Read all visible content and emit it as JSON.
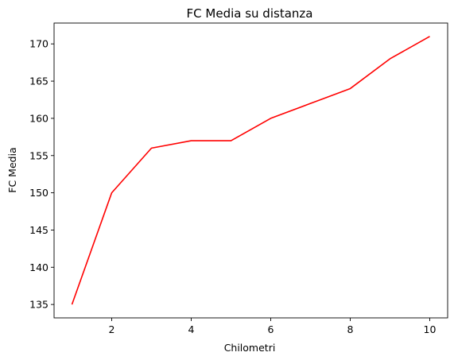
{
  "chart_data": {
    "type": "line",
    "title": "FC Media su distanza",
    "xlabel": "Chilometri",
    "ylabel": "FC Media",
    "x": [
      1,
      2,
      3,
      4,
      5,
      6,
      7,
      8,
      9,
      10
    ],
    "series": [
      {
        "values": [
          135,
          150,
          156,
          157,
          157,
          160,
          162,
          164,
          168,
          171
        ],
        "color": "#ff0000"
      }
    ],
    "xlim": [
      0.55,
      10.45
    ],
    "ylim": [
      133.2,
      172.8
    ],
    "xticks": [
      2,
      4,
      6,
      8,
      10
    ],
    "yticks": [
      135,
      140,
      145,
      150,
      155,
      160,
      165,
      170
    ],
    "grid": false
  }
}
